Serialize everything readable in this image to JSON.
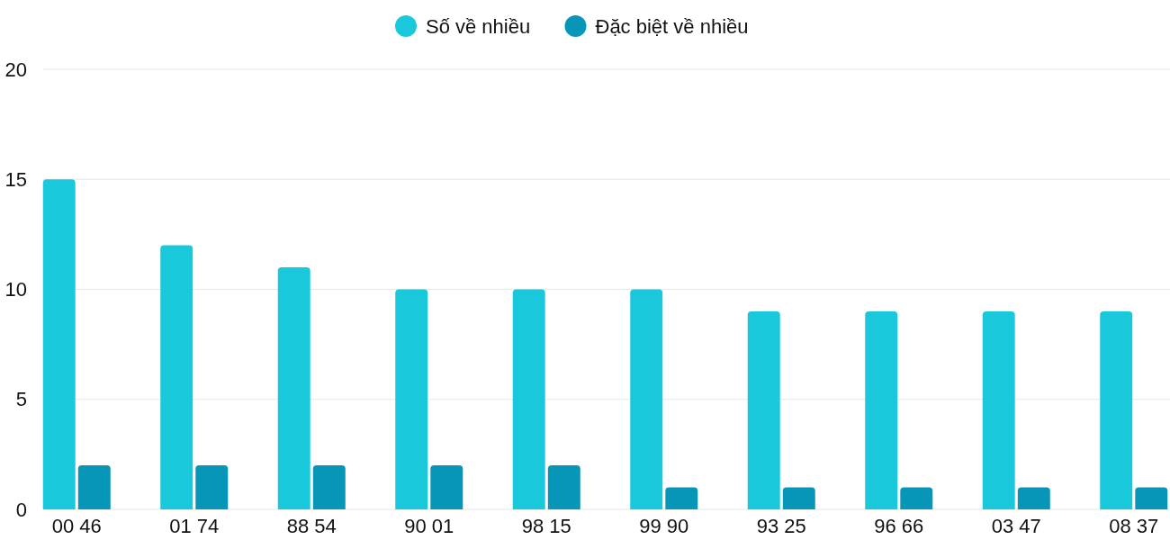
{
  "chart_data": {
    "type": "bar",
    "categories": [
      "00 46",
      "01 74",
      "88 54",
      "90 01",
      "98 15",
      "99 90",
      "93 25",
      "96 66",
      "03 47",
      "08 37"
    ],
    "series": [
      {
        "name": "Số về nhiều",
        "color": "#1ac8db",
        "values": [
          15,
          12,
          11,
          10,
          10,
          10,
          9,
          9,
          9,
          9
        ]
      },
      {
        "name": "Đặc biệt về nhiều",
        "color": "#0795b8",
        "values": [
          2,
          2,
          2,
          2,
          2,
          1,
          1,
          1,
          1,
          1
        ]
      }
    ],
    "ylim": [
      0,
      20
    ],
    "yticks": [
      0,
      5,
      10,
      15,
      20
    ],
    "grid": "y",
    "legend": "top"
  }
}
